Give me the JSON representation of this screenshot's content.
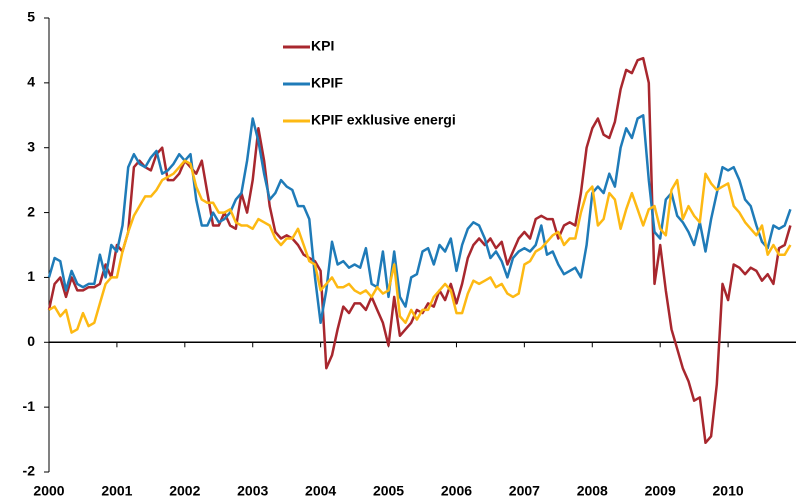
{
  "chart_data": {
    "type": "line",
    "x": [
      2000,
      2000.083,
      2000.167,
      2000.25,
      2000.333,
      2000.417,
      2000.5,
      2000.583,
      2000.667,
      2000.75,
      2000.833,
      2000.917,
      2001,
      2001.083,
      2001.167,
      2001.25,
      2001.333,
      2001.417,
      2001.5,
      2001.583,
      2001.667,
      2001.75,
      2001.833,
      2001.917,
      2002,
      2002.083,
      2002.167,
      2002.25,
      2002.333,
      2002.417,
      2002.5,
      2002.583,
      2002.667,
      2002.75,
      2002.833,
      2002.917,
      2003,
      2003.083,
      2003.167,
      2003.25,
      2003.333,
      2003.417,
      2003.5,
      2003.583,
      2003.667,
      2003.75,
      2003.833,
      2003.917,
      2004,
      2004.083,
      2004.167,
      2004.25,
      2004.333,
      2004.417,
      2004.5,
      2004.583,
      2004.667,
      2004.75,
      2004.833,
      2004.917,
      2005,
      2005.083,
      2005.167,
      2005.25,
      2005.333,
      2005.417,
      2005.5,
      2005.583,
      2005.667,
      2005.75,
      2005.833,
      2005.917,
      2006,
      2006.083,
      2006.167,
      2006.25,
      2006.333,
      2006.417,
      2006.5,
      2006.583,
      2006.667,
      2006.75,
      2006.833,
      2006.917,
      2007,
      2007.083,
      2007.167,
      2007.25,
      2007.333,
      2007.417,
      2007.5,
      2007.583,
      2007.667,
      2007.75,
      2007.833,
      2007.917,
      2008,
      2008.083,
      2008.167,
      2008.25,
      2008.333,
      2008.417,
      2008.5,
      2008.583,
      2008.667,
      2008.75,
      2008.833,
      2008.917,
      2009,
      2009.083,
      2009.167,
      2009.25,
      2009.333,
      2009.417,
      2009.5,
      2009.583,
      2009.667,
      2009.75,
      2009.833,
      2009.917,
      2010,
      2010.083,
      2010.167,
      2010.25,
      2010.333,
      2010.417,
      2010.5,
      2010.583,
      2010.667,
      2010.75,
      2010.833,
      2010.917
    ],
    "series": [
      {
        "name": "KPI",
        "color": "#a8272e",
        "values": [
          0.5,
          0.9,
          1.0,
          0.7,
          1.0,
          0.8,
          0.8,
          0.85,
          0.85,
          0.9,
          1.2,
          1.0,
          1.5,
          1.4,
          1.7,
          2.7,
          2.8,
          2.7,
          2.65,
          2.9,
          3.0,
          2.5,
          2.5,
          2.6,
          2.8,
          2.7,
          2.6,
          2.8,
          2.3,
          1.8,
          1.8,
          2.0,
          1.8,
          1.75,
          2.3,
          2.0,
          2.5,
          3.3,
          2.8,
          2.1,
          1.7,
          1.6,
          1.65,
          1.6,
          1.5,
          1.35,
          1.3,
          1.25,
          1.1,
          -0.4,
          -0.2,
          0.2,
          0.55,
          0.45,
          0.6,
          0.6,
          0.5,
          0.7,
          0.5,
          0.3,
          -0.05,
          0.7,
          0.1,
          0.2,
          0.3,
          0.5,
          0.45,
          0.6,
          0.55,
          0.8,
          0.65,
          0.9,
          0.6,
          0.9,
          1.3,
          1.5,
          1.6,
          1.5,
          1.6,
          1.45,
          1.55,
          1.2,
          1.4,
          1.6,
          1.7,
          1.6,
          1.9,
          1.95,
          1.9,
          1.9,
          1.6,
          1.8,
          1.85,
          1.8,
          2.3,
          3.0,
          3.3,
          3.45,
          3.2,
          3.15,
          3.4,
          3.9,
          4.2,
          4.15,
          4.35,
          4.38,
          4.0,
          0.9,
          1.5,
          0.8,
          0.2,
          -0.1,
          -0.4,
          -0.6,
          -0.9,
          -0.85,
          -1.55,
          -1.45,
          -0.65,
          0.9,
          0.65,
          1.2,
          1.15,
          1.05,
          1.15,
          1.1,
          0.95,
          1.05,
          0.9,
          1.45,
          1.5,
          1.8
        ]
      },
      {
        "name": "KPIF",
        "color": "#1f7bb8",
        "values": [
          1.0,
          1.3,
          1.25,
          0.8,
          1.1,
          0.9,
          0.85,
          0.9,
          0.9,
          1.35,
          1.0,
          1.5,
          1.4,
          1.8,
          2.7,
          2.9,
          2.75,
          2.7,
          2.85,
          2.95,
          2.6,
          2.65,
          2.75,
          2.9,
          2.8,
          2.9,
          2.2,
          1.8,
          1.8,
          2.0,
          1.85,
          1.9,
          2.0,
          2.2,
          2.3,
          2.8,
          3.45,
          3.1,
          2.6,
          2.2,
          2.3,
          2.5,
          2.4,
          2.35,
          2.1,
          2.1,
          1.9,
          1.0,
          0.3,
          0.8,
          1.55,
          1.2,
          1.25,
          1.15,
          1.2,
          1.15,
          1.45,
          0.9,
          0.85,
          1.4,
          0.7,
          1.4,
          0.7,
          0.55,
          1.0,
          1.05,
          1.4,
          1.45,
          1.2,
          1.5,
          1.4,
          1.6,
          1.1,
          1.5,
          1.75,
          1.85,
          1.8,
          1.6,
          1.3,
          1.4,
          1.25,
          1.0,
          1.3,
          1.4,
          1.45,
          1.4,
          1.5,
          1.8,
          1.35,
          1.4,
          1.2,
          1.05,
          1.1,
          1.15,
          1.0,
          1.5,
          2.3,
          2.4,
          2.3,
          2.6,
          2.4,
          3.0,
          3.3,
          3.15,
          3.45,
          3.5,
          2.5,
          1.7,
          1.6,
          2.2,
          2.3,
          1.95,
          1.85,
          1.7,
          1.5,
          1.85,
          1.4,
          1.9,
          2.3,
          2.7,
          2.65,
          2.7,
          2.5,
          2.2,
          2.1,
          1.8,
          1.55,
          1.45,
          1.8,
          1.75,
          1.8,
          2.05
        ]
      },
      {
        "name": "KPIF exklusive energi",
        "color": "#fdb913",
        "values": [
          0.5,
          0.55,
          0.4,
          0.5,
          0.15,
          0.2,
          0.45,
          0.25,
          0.3,
          0.6,
          0.9,
          1.0,
          1.0,
          1.4,
          1.7,
          1.95,
          2.1,
          2.25,
          2.25,
          2.35,
          2.5,
          2.55,
          2.6,
          2.7,
          2.8,
          2.75,
          2.4,
          2.2,
          2.15,
          2.15,
          2.0,
          2.0,
          2.05,
          1.85,
          1.8,
          1.8,
          1.75,
          1.9,
          1.85,
          1.8,
          1.6,
          1.5,
          1.6,
          1.6,
          1.75,
          1.5,
          1.25,
          1.2,
          0.8,
          0.9,
          1.0,
          0.85,
          0.85,
          0.9,
          0.8,
          0.75,
          0.8,
          0.7,
          0.85,
          0.75,
          0.8,
          1.2,
          0.4,
          0.3,
          0.5,
          0.35,
          0.5,
          0.5,
          0.7,
          0.8,
          0.9,
          0.8,
          0.45,
          0.45,
          0.75,
          0.95,
          0.9,
          0.95,
          1.0,
          0.85,
          0.9,
          0.75,
          0.7,
          0.75,
          1.2,
          1.25,
          1.4,
          1.45,
          1.55,
          1.65,
          1.7,
          1.5,
          1.6,
          1.6,
          2.0,
          2.3,
          2.4,
          1.8,
          1.9,
          2.3,
          2.2,
          1.75,
          2.05,
          2.3,
          2.05,
          1.8,
          2.05,
          2.1,
          1.75,
          1.65,
          2.35,
          2.5,
          1.9,
          2.1,
          1.95,
          1.85,
          2.6,
          2.45,
          2.35,
          2.4,
          2.45,
          2.1,
          2.0,
          1.85,
          1.75,
          1.65,
          1.8,
          1.35,
          1.5,
          1.35,
          1.35,
          1.5
        ]
      }
    ],
    "xlim": [
      2000,
      2011
    ],
    "xticks": [
      2000,
      2001,
      2002,
      2003,
      2004,
      2005,
      2006,
      2007,
      2008,
      2009,
      2010
    ],
    "ylim": [
      -2,
      5
    ],
    "yticks": [
      -2,
      -1,
      0,
      1,
      2,
      3,
      4,
      5
    ],
    "grid": false,
    "legend": "top"
  }
}
